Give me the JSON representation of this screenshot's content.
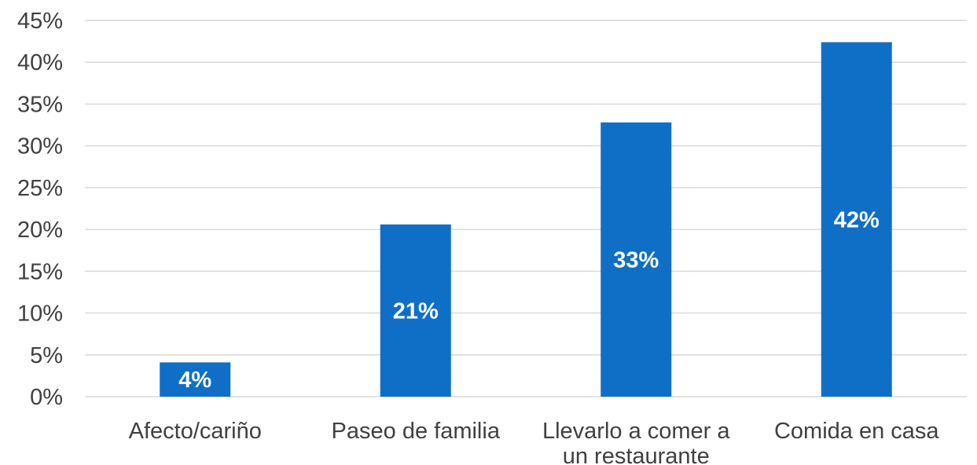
{
  "chart_data": {
    "type": "bar",
    "title": "",
    "xlabel": "",
    "ylabel": "",
    "categories": [
      [
        "Afecto/cariño"
      ],
      [
        "Paseo de familia"
      ],
      [
        "Llevarlo a comer a",
        "un restaurante"
      ],
      [
        "Comida en casa"
      ]
    ],
    "values": [
      4.1,
      20.6,
      32.8,
      42.4
    ],
    "data_labels": [
      "4%",
      "21%",
      "33%",
      "42%"
    ],
    "ylim": [
      0,
      45
    ],
    "yticks": [
      0,
      5,
      10,
      15,
      20,
      25,
      30,
      35,
      40,
      45
    ],
    "ytick_labels": [
      "0%",
      "5%",
      "10%",
      "15%",
      "20%",
      "25%",
      "30%",
      "35%",
      "40%",
      "45%"
    ],
    "grid": true,
    "legend": "none",
    "bar_color": "#0f6fc6",
    "grid_color": "#d9d9d9"
  }
}
